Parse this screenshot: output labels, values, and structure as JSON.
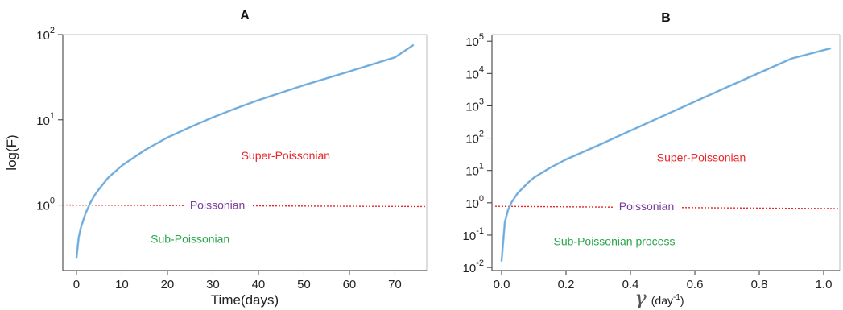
{
  "chart_data": [
    {
      "panel_label": "A",
      "type": "line",
      "xlabel": "Time(days)",
      "ylabel": "log(F)",
      "yscale": "log",
      "xlim": [
        -3,
        77
      ],
      "ylim": [
        0.17,
        100
      ],
      "xticks": [
        0,
        10,
        20,
        30,
        40,
        50,
        60,
        70
      ],
      "xtick_labels": [
        "0",
        "10",
        "20",
        "30",
        "40",
        "50",
        "60",
        "70"
      ],
      "yticks": [
        1,
        10,
        100
      ],
      "ytick_labels": [
        {
          "base": "10",
          "exp": "0"
        },
        {
          "base": "10",
          "exp": "1"
        },
        {
          "base": "10",
          "exp": "2"
        }
      ],
      "series": [
        {
          "color": "#88bde6",
          "x": [
            0,
            0.5,
            1,
            2,
            3,
            4,
            5,
            7,
            10,
            15,
            20,
            25,
            30,
            35,
            40,
            50,
            60,
            70,
            74
          ],
          "y": [
            0.24,
            0.42,
            0.55,
            0.8,
            1.05,
            1.3,
            1.55,
            2.1,
            2.9,
            4.4,
            6.2,
            8.2,
            10.7,
            13.6,
            17,
            25.5,
            37,
            54,
            75
          ]
        }
      ],
      "reference_line": {
        "y": 1,
        "label": "Poissonian",
        "color": "#e8262a",
        "style": "dotted",
        "x_from": -3,
        "x_to": 77,
        "y_end": 0.96
      },
      "annotations": [
        {
          "text": "Super-Poissonian",
          "x": 46,
          "y": 3.8,
          "color": "#e8262a"
        },
        {
          "text": "Poissonian",
          "x": 31,
          "y": 1,
          "color": "#7a3c9a"
        },
        {
          "text": "Sub-Poissonian",
          "x": 25,
          "y": 0.4,
          "color": "#2aa64a"
        }
      ]
    },
    {
      "panel_label": "B",
      "type": "line",
      "xlabel_symbol": "γ",
      "xlabel_unit": "(day",
      "xlabel_unit_exp": "-1",
      "xlabel_unit_close": ")",
      "yscale": "log",
      "xlim": [
        -0.03,
        1.05
      ],
      "ylim": [
        0.008,
        160000
      ],
      "xticks": [
        0,
        0.2,
        0.4,
        0.6,
        0.8,
        1.0
      ],
      "xtick_labels": [
        "0.0",
        "0.2",
        "0.4",
        "0.6",
        "0.8",
        "1.0"
      ],
      "yticks": [
        0.01,
        0.1,
        1,
        10,
        100,
        1000,
        10000,
        100000
      ],
      "ytick_labels": [
        {
          "base": "10",
          "exp": "-2"
        },
        {
          "base": "10",
          "exp": "-1"
        },
        {
          "base": "10",
          "exp": "0"
        },
        {
          "base": "10",
          "exp": "1"
        },
        {
          "base": "10",
          "exp": "2"
        },
        {
          "base": "10",
          "exp": "3"
        },
        {
          "base": "10",
          "exp": "4"
        },
        {
          "base": "10",
          "exp": "5"
        }
      ],
      "series": [
        {
          "color": "#88bde6",
          "x": [
            0,
            0.01,
            0.02,
            0.03,
            0.05,
            0.08,
            0.1,
            0.15,
            0.2,
            0.3,
            0.4,
            0.5,
            0.6,
            0.7,
            0.8,
            0.9,
            1.02
          ],
          "y": [
            0.016,
            0.25,
            0.6,
            1.0,
            2.0,
            4.0,
            6.0,
            12,
            22,
            60,
            170,
            480,
            1350,
            3800,
            10500,
            29000,
            60000
          ]
        }
      ],
      "reference_line": {
        "y": 0.78,
        "label": "Poissonian",
        "color": "#e8262a",
        "style": "dotted",
        "x_from": -0.02,
        "x_to": 1.05,
        "y_end": 0.66
      },
      "annotations": [
        {
          "text": "Super-Poissonian",
          "x": 0.62,
          "y": 25,
          "color": "#e8262a"
        },
        {
          "text": "Poissonian",
          "x": 0.45,
          "y": 0.78,
          "color": "#7a3c9a"
        },
        {
          "text": "Sub-Poissonian process",
          "x": 0.35,
          "y": 0.065,
          "color": "#2aa64a"
        }
      ]
    }
  ]
}
